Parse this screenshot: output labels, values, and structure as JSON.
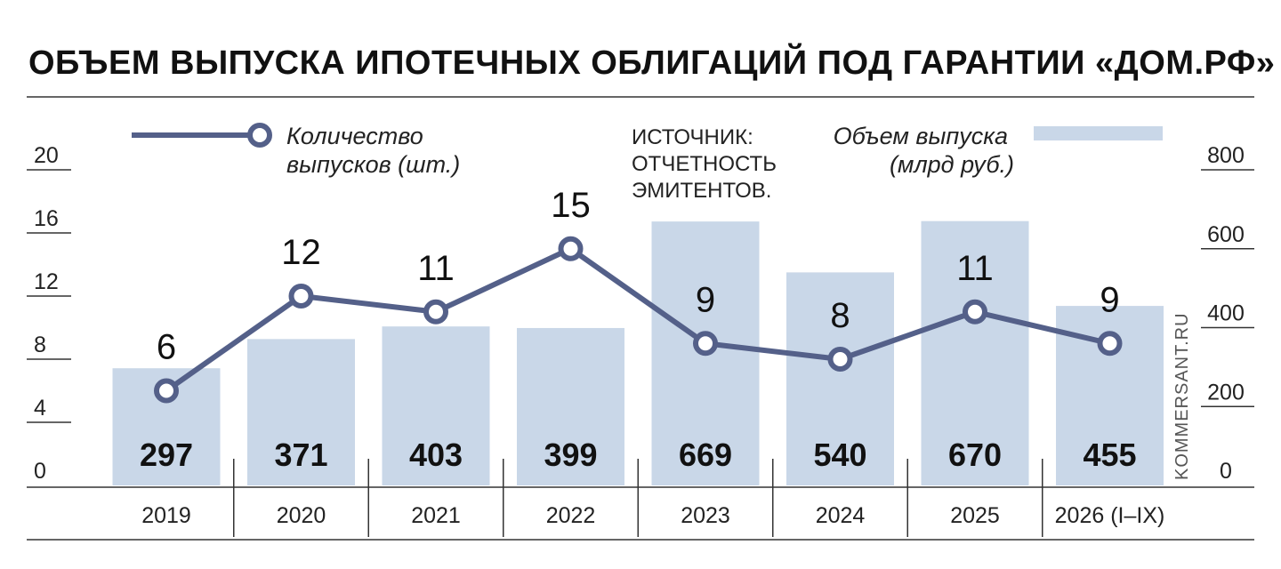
{
  "title": "ОБЪЕМ ВЫПУСКА ИПОТЕЧНЫХ ОБЛИГАЦИЙ ПОД ГАРАНТИИ «ДОМ.РФ»",
  "legend": {
    "line_label_1": "Количество",
    "line_label_2": "выпусков (шт.)",
    "bar_label_1": "Объем выпуска",
    "bar_label_2": "(млрд руб.)"
  },
  "source": {
    "line1": "ИСТОЧНИК:",
    "line2": "ОТЧЕТНОСТЬ",
    "line3": "ЭМИТЕНТОВ."
  },
  "credit": "KOMMERSANT.RU",
  "colors": {
    "bar": "#c9d7e8",
    "line": "#546089",
    "marker_fill": "#ffffff",
    "rule": "#333333"
  },
  "chart_data": {
    "type": "bar",
    "categories": [
      "2019",
      "2020",
      "2021",
      "2022",
      "2023",
      "2024",
      "2025",
      "2026 (I–IX)"
    ],
    "series": [
      {
        "name": "Объем выпуска (млрд руб.)",
        "type": "bar",
        "axis": "right",
        "values": [
          297,
          371,
          403,
          399,
          669,
          540,
          670,
          455
        ]
      },
      {
        "name": "Количество выпусков (шт.)",
        "type": "line",
        "axis": "left",
        "values": [
          6,
          12,
          11,
          15,
          9,
          8,
          11,
          9
        ]
      }
    ],
    "left_axis": {
      "ticks": [
        "0",
        "4",
        "8",
        "12",
        "16",
        "20"
      ],
      "range": [
        0,
        24
      ]
    },
    "right_axis": {
      "ticks": [
        "0",
        "200",
        "400",
        "600",
        "800"
      ],
      "range": [
        0,
        960
      ]
    },
    "grid": false,
    "legend_position": "top"
  }
}
